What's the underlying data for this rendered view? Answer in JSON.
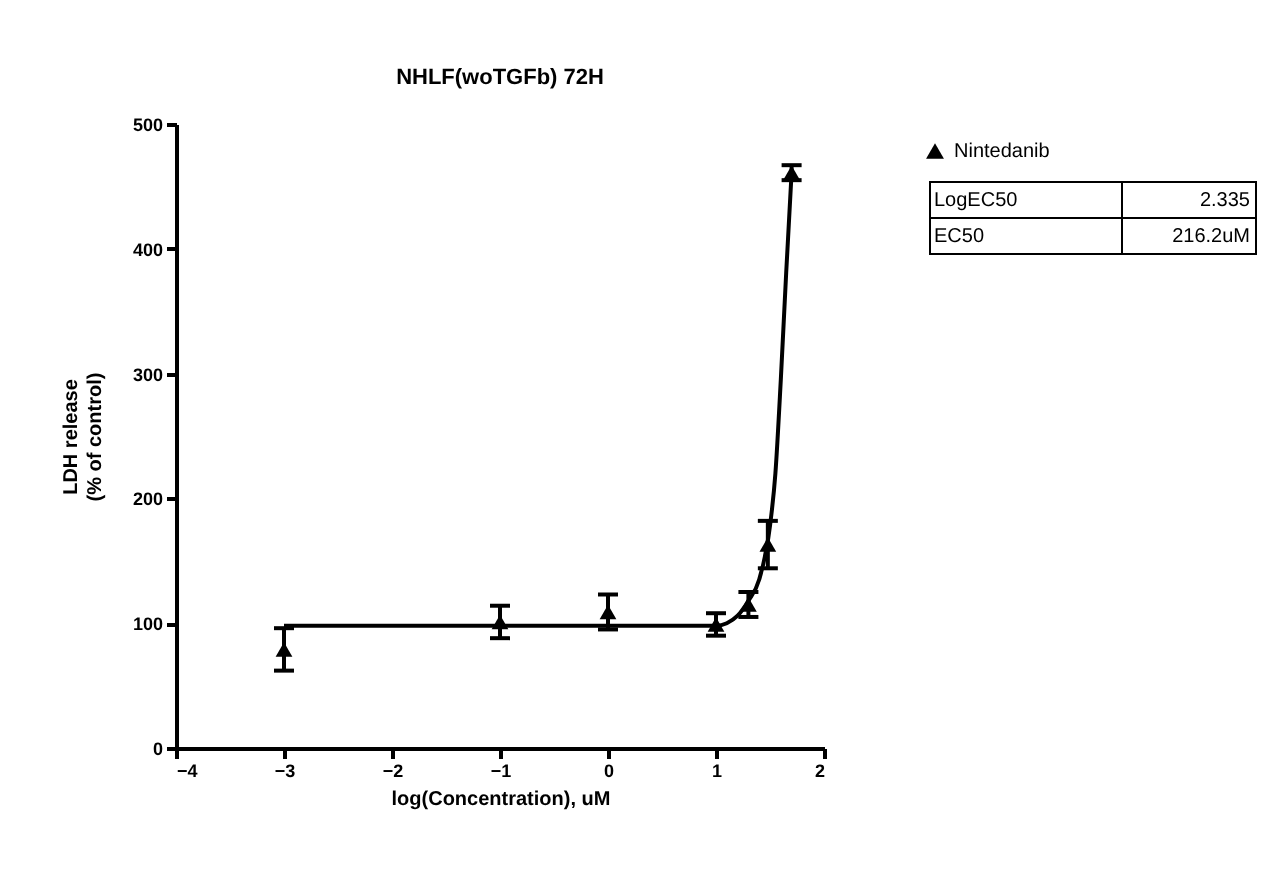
{
  "chart_data": {
    "type": "scatter",
    "title": "NHLF(woTGFb) 72H",
    "xlabel": "log(Concentration), uM",
    "ylabel": "LDH release\n(% of control)",
    "series": [
      {
        "name": "Nintedanib",
        "color": "#000000",
        "marker": "triangle",
        "x": [
          -3,
          -1,
          0,
          1,
          1.3,
          1.48,
          1.7
        ],
        "values": [
          79,
          101,
          109,
          99,
          115,
          163,
          461
        ],
        "errors": [
          17,
          13,
          14,
          9,
          10,
          19,
          6
        ]
      },
      {
        "type": "line",
        "color": "#000000",
        "marker": "none",
        "x": [
          -3,
          -1,
          0,
          1,
          1.1,
          1.2,
          1.3,
          1.4,
          1.5,
          1.55,
          1.6,
          1.65,
          1.7
        ],
        "values": [
          98,
          98,
          98,
          98,
          100,
          106,
          118,
          135,
          178,
          220,
          295,
          381,
          461
        ]
      }
    ],
    "xlim": [
      -4,
      2
    ],
    "xticks": [
      -4,
      -3,
      -2,
      -1,
      0,
      1,
      2
    ],
    "ylim": [
      0,
      500
    ],
    "yticks": [
      0,
      100,
      200,
      300,
      400,
      500
    ],
    "grid": false,
    "legend": "top right",
    "annotations": [
      "LogEC50",
      "2.335",
      "EC50",
      "216.2uM"
    ]
  }
}
